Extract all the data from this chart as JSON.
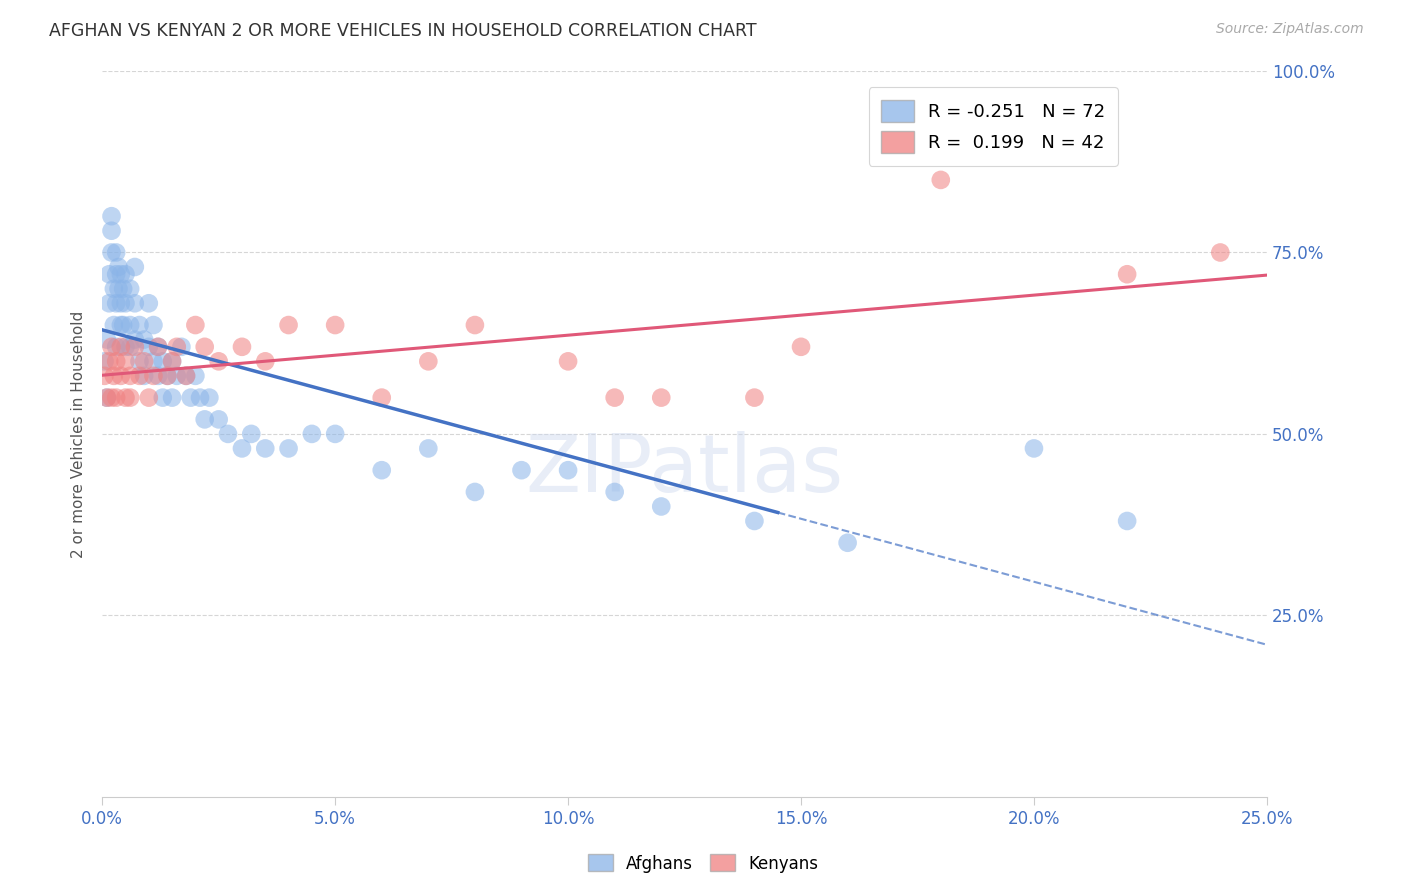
{
  "title": "AFGHAN VS KENYAN 2 OR MORE VEHICLES IN HOUSEHOLD CORRELATION CHART",
  "source": "Source: ZipAtlas.com",
  "ylabel": "2 or more Vehicles in Household",
  "watermark": "ZIPatlas",
  "xlim": [
    0.0,
    0.25
  ],
  "ylim": [
    0.0,
    1.0
  ],
  "xtick_vals": [
    0.0,
    0.05,
    0.1,
    0.15,
    0.2,
    0.25
  ],
  "xtick_labels": [
    "0.0%",
    "5.0%",
    "10.0%",
    "15.0%",
    "20.0%",
    "25.0%"
  ],
  "ytick_vals": [
    0.25,
    0.5,
    0.75,
    1.0
  ],
  "ytick_labels": [
    "25.0%",
    "50.0%",
    "75.0%",
    "100.0%"
  ],
  "afghan_color": "#8ab4e8",
  "kenyan_color": "#f08080",
  "line_afghan_color": "#4472c4",
  "line_kenyan_color": "#e05878",
  "afghan_R": -0.251,
  "afghan_N": 72,
  "kenyan_R": 0.199,
  "kenyan_N": 42,
  "afghan_x": [
    0.0005,
    0.001,
    0.001,
    0.0015,
    0.0015,
    0.002,
    0.002,
    0.002,
    0.0025,
    0.0025,
    0.003,
    0.003,
    0.003,
    0.003,
    0.0035,
    0.0035,
    0.004,
    0.004,
    0.004,
    0.0045,
    0.0045,
    0.005,
    0.005,
    0.005,
    0.006,
    0.006,
    0.006,
    0.007,
    0.007,
    0.007,
    0.008,
    0.008,
    0.009,
    0.009,
    0.01,
    0.01,
    0.011,
    0.011,
    0.012,
    0.012,
    0.013,
    0.013,
    0.014,
    0.015,
    0.015,
    0.016,
    0.017,
    0.018,
    0.019,
    0.02,
    0.021,
    0.022,
    0.023,
    0.025,
    0.027,
    0.03,
    0.032,
    0.035,
    0.04,
    0.045,
    0.05,
    0.06,
    0.07,
    0.08,
    0.09,
    0.1,
    0.11,
    0.12,
    0.14,
    0.16,
    0.2,
    0.22
  ],
  "afghan_y": [
    0.6,
    0.63,
    0.55,
    0.72,
    0.68,
    0.75,
    0.78,
    0.8,
    0.7,
    0.65,
    0.72,
    0.75,
    0.68,
    0.62,
    0.73,
    0.7,
    0.68,
    0.65,
    0.72,
    0.7,
    0.65,
    0.68,
    0.62,
    0.72,
    0.7,
    0.65,
    0.62,
    0.73,
    0.68,
    0.63,
    0.65,
    0.6,
    0.63,
    0.58,
    0.62,
    0.68,
    0.65,
    0.6,
    0.58,
    0.62,
    0.6,
    0.55,
    0.58,
    0.6,
    0.55,
    0.58,
    0.62,
    0.58,
    0.55,
    0.58,
    0.55,
    0.52,
    0.55,
    0.52,
    0.5,
    0.48,
    0.5,
    0.48,
    0.48,
    0.5,
    0.5,
    0.45,
    0.48,
    0.42,
    0.45,
    0.45,
    0.42,
    0.4,
    0.38,
    0.35,
    0.48,
    0.38
  ],
  "kenyan_x": [
    0.0005,
    0.001,
    0.0015,
    0.002,
    0.002,
    0.0025,
    0.003,
    0.003,
    0.004,
    0.004,
    0.005,
    0.005,
    0.006,
    0.006,
    0.007,
    0.008,
    0.009,
    0.01,
    0.011,
    0.012,
    0.014,
    0.015,
    0.016,
    0.018,
    0.02,
    0.022,
    0.025,
    0.03,
    0.035,
    0.04,
    0.05,
    0.06,
    0.07,
    0.08,
    0.1,
    0.11,
    0.12,
    0.14,
    0.15,
    0.18,
    0.22,
    0.24
  ],
  "kenyan_y": [
    0.58,
    0.55,
    0.6,
    0.62,
    0.55,
    0.58,
    0.6,
    0.55,
    0.58,
    0.62,
    0.55,
    0.6,
    0.58,
    0.55,
    0.62,
    0.58,
    0.6,
    0.55,
    0.58,
    0.62,
    0.58,
    0.6,
    0.62,
    0.58,
    0.65,
    0.62,
    0.6,
    0.62,
    0.6,
    0.65,
    0.65,
    0.55,
    0.6,
    0.65,
    0.6,
    0.55,
    0.55,
    0.55,
    0.62,
    0.85,
    0.72,
    0.75
  ],
  "background_color": "#ffffff",
  "grid_color": "#cccccc"
}
